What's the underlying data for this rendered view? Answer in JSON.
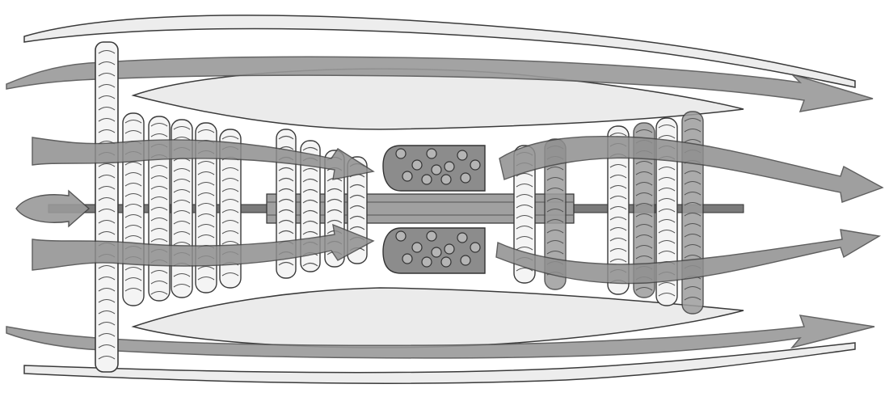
{
  "diagram": {
    "subject": "turbofan-engine-cross-section",
    "colors": {
      "background": "#ffffff",
      "outline": "#3a3a3a",
      "nacelle_fill": "#ebebeb",
      "core_casing_fill": "#e2e2e2",
      "arrow_fill": "#9a9a9a",
      "arrow_stroke": "#555555",
      "blade_fill": "#f4f4f4",
      "blade_dark_fill": "#9d9d9d",
      "combustor_fill": "#8c8c8c",
      "shaft_fill": "#7a7a7a"
    },
    "components": [
      {
        "id": "fan",
        "icon": "fan-blade-icon"
      },
      {
        "id": "low-pressure-compressor",
        "icon": "compressor-stage-icon",
        "stages": 5
      },
      {
        "id": "high-pressure-compressor",
        "icon": "compressor-stage-icon",
        "stages": 4
      },
      {
        "id": "combustion-chamber",
        "icon": "combustor-icon",
        "count": 2
      },
      {
        "id": "high-pressure-turbine",
        "icon": "turbine-stage-icon",
        "stages": 2
      },
      {
        "id": "low-pressure-turbine",
        "icon": "turbine-stage-icon",
        "stages": 4
      },
      {
        "id": "shaft",
        "icon": "shaft-icon"
      }
    ],
    "airflows": [
      {
        "id": "outer-bypass-top",
        "icon": "airflow-arrow-icon"
      },
      {
        "id": "bypass-top",
        "icon": "airflow-arrow-icon"
      },
      {
        "id": "core-flow-top",
        "icon": "airflow-arrow-icon"
      },
      {
        "id": "intake-center",
        "icon": "airflow-arrow-icon"
      },
      {
        "id": "core-flow-bottom",
        "icon": "airflow-arrow-icon"
      },
      {
        "id": "bypass-bottom",
        "icon": "airflow-arrow-icon"
      },
      {
        "id": "outer-bypass-bottom",
        "icon": "airflow-arrow-icon"
      }
    ]
  }
}
